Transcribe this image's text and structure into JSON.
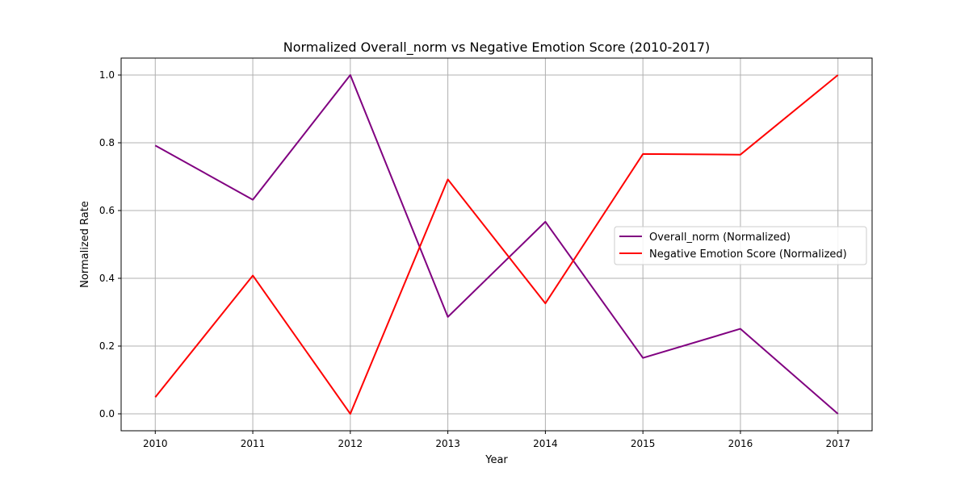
{
  "chart_data": {
    "type": "line",
    "title": "Normalized Overall_norm vs Negative Emotion Score (2010-2017)",
    "xlabel": "Year",
    "ylabel": "Normalized Rate",
    "x": [
      2010,
      2011,
      2012,
      2013,
      2014,
      2015,
      2016,
      2017
    ],
    "x_tick_labels": [
      "2010",
      "2011",
      "2012",
      "2013",
      "2014",
      "2015",
      "2016",
      "2017"
    ],
    "xlim": [
      2009.65,
      2017.35
    ],
    "ylim": [
      -0.05,
      1.05
    ],
    "y_ticks": [
      0.0,
      0.2,
      0.4,
      0.6,
      0.8,
      1.0
    ],
    "y_tick_labels": [
      "0.0",
      "0.2",
      "0.4",
      "0.6",
      "0.8",
      "1.0"
    ],
    "grid": true,
    "legend_position": "center-right",
    "series": [
      {
        "name": "Overall_norm (Normalized)",
        "color": "#800080",
        "values": [
          0.792,
          0.632,
          1.0,
          0.286,
          0.567,
          0.165,
          0.251,
          0.0
        ]
      },
      {
        "name": "Negative Emotion Score (Normalized)",
        "color": "#ff0000",
        "values": [
          0.049,
          0.408,
          0.0,
          0.692,
          0.326,
          0.767,
          0.765,
          1.0
        ]
      }
    ]
  }
}
